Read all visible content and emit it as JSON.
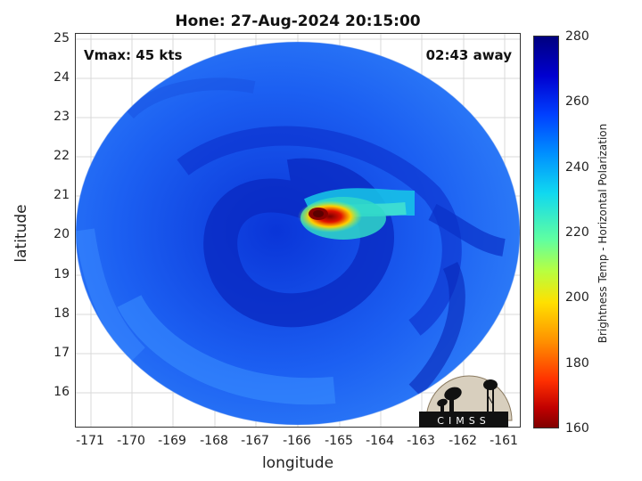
{
  "title": "Hone: 27-Aug-2024 20:15:00",
  "vmax_label": "Vmax: 45 kts",
  "time_label": "02:43 away",
  "axes": {
    "xlabel": "longitude",
    "ylabel": "latitude",
    "xticks": [
      "-171",
      "-170",
      "-169",
      "-168",
      "-167",
      "-166",
      "-165",
      "-164",
      "-163",
      "-162",
      "-161"
    ],
    "yticks": [
      "25",
      "24",
      "23",
      "22",
      "21",
      "20",
      "19",
      "18",
      "17",
      "16"
    ]
  },
  "colorbar": {
    "label": "Brightness Temp - Horizontal Polarization",
    "ticks": [
      "280",
      "260",
      "240",
      "220",
      "200",
      "180",
      "160"
    ],
    "colormap": "jet-reversed"
  },
  "logo": {
    "text": "CIMSS"
  },
  "colors": {
    "background_scan": "#1e64f5",
    "cold_core": "#b00000",
    "band": "#18c8e8"
  }
}
